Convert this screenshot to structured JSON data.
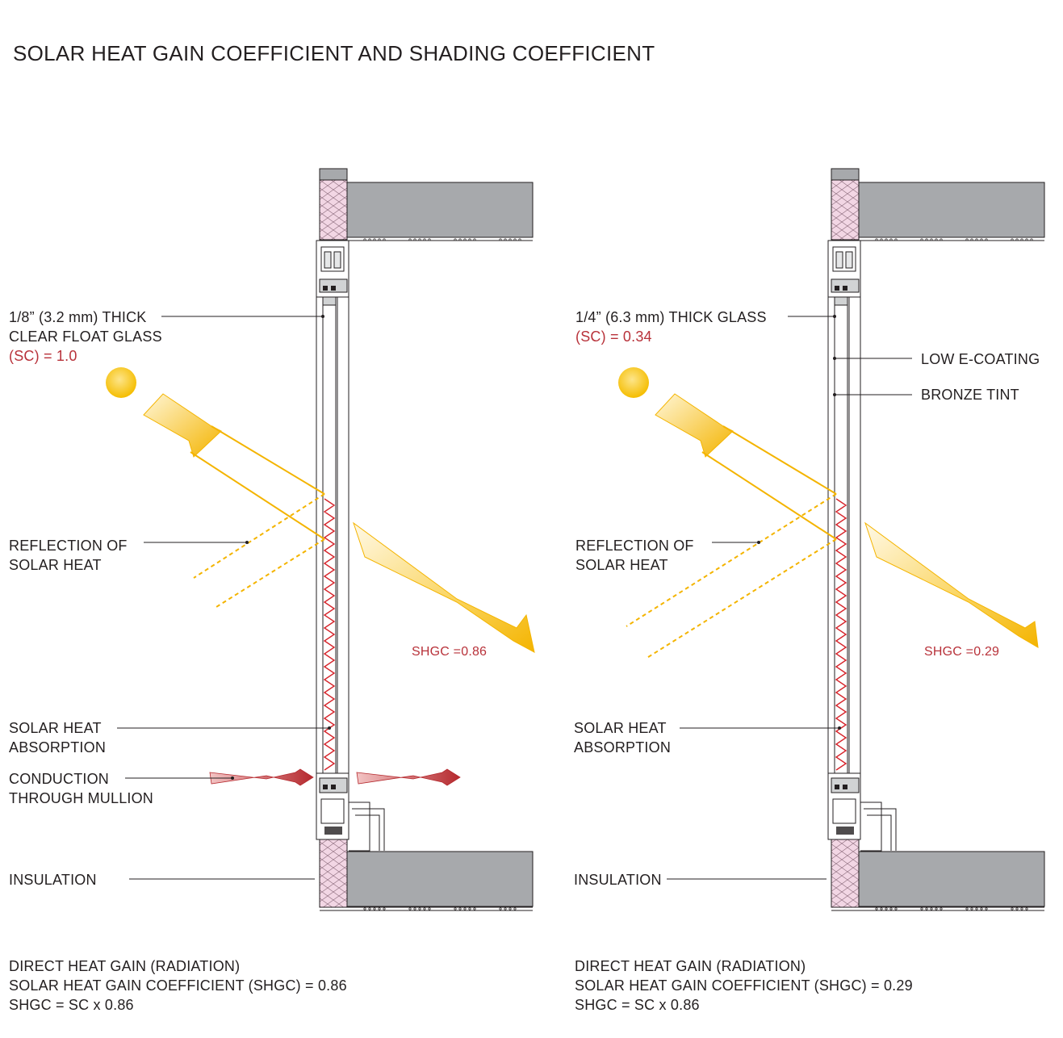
{
  "title": "SOLAR HEAT GAIN COEFFICIENT AND SHADING COEFFICIENT",
  "left": {
    "glass_line1": "1/8” (3.2 mm) THICK",
    "glass_line2": "CLEAR FLOAT GLASS",
    "sc": "(SC) = 1.0",
    "reflection_line1": "REFLECTION OF",
    "reflection_line2": "SOLAR HEAT",
    "shgc_label": "SHGC =0.86",
    "absorption_line1": "SOLAR HEAT",
    "absorption_line2": "ABSORPTION",
    "conduction_line1": "CONDUCTION",
    "conduction_line2": "THROUGH MULLION",
    "insulation": "INSULATION",
    "summary_line1": "DIRECT HEAT GAIN (RADIATION)",
    "summary_line2": "SOLAR HEAT GAIN COEFFICIENT (SHGC) = 0.86",
    "summary_line3": "SHGC = SC x 0.86"
  },
  "right": {
    "glass_line1": "1/4” (6.3 mm) THICK GLASS",
    "sc": "(SC) = 0.34",
    "coating": "LOW E-COATING",
    "tint": "BRONZE TINT",
    "reflection_line1": "REFLECTION OF",
    "reflection_line2": "SOLAR HEAT",
    "shgc_label": "SHGC =0.29",
    "absorption_line1": "SOLAR HEAT",
    "absorption_line2": "ABSORPTION",
    "insulation": "INSULATION",
    "summary_line1": "DIRECT HEAT GAIN (RADIATION)",
    "summary_line2": "SOLAR HEAT GAIN COEFFICIENT (SHGC) = 0.29",
    "summary_line3": "SHGC = SC x 0.86"
  },
  "colors": {
    "sun": "#f7c600",
    "ray": "#f5b800",
    "absorption_zigzag": "#d6232a",
    "slab": "#a7a9ac",
    "insulation": "#f2d6e4",
    "conduction_arrow": "#b5292e",
    "sc_text": "#b8323a"
  }
}
